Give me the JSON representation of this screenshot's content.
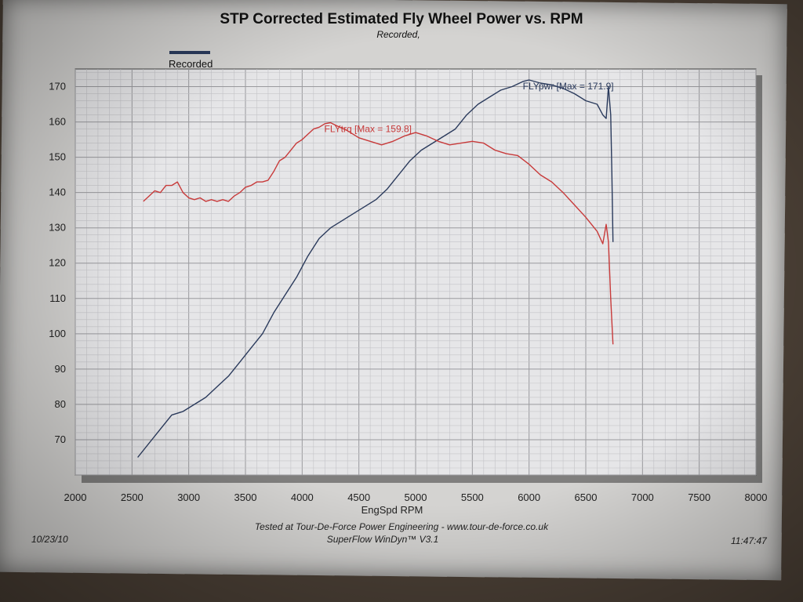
{
  "chart_data": {
    "type": "line",
    "title": "STP Corrected Estimated Fly Wheel Power vs. RPM",
    "subtitle": "Recorded,",
    "legend": {
      "entries": [
        "Recorded"
      ],
      "placement": "top-left"
    },
    "xlabel": "EngSpd RPM",
    "ylabel": "",
    "xlim": [
      2000,
      8000
    ],
    "ylim": [
      60,
      175
    ],
    "x_ticks": [
      "2000",
      "2500",
      "3000",
      "3500",
      "4000",
      "4500",
      "5000",
      "5500",
      "6000",
      "6500",
      "7000",
      "7500",
      "8000"
    ],
    "y_ticks": [
      "70",
      "80",
      "90",
      "100",
      "110",
      "120",
      "130",
      "140",
      "150",
      "160",
      "170"
    ],
    "grid": true,
    "series": [
      {
        "name": "FLYpwr",
        "color": "#2a3a5c",
        "annotation": "FLYpwr [Max = 171.9]",
        "points": [
          [
            2550,
            65
          ],
          [
            2650,
            69
          ],
          [
            2750,
            73
          ],
          [
            2850,
            77
          ],
          [
            2950,
            78
          ],
          [
            3050,
            80
          ],
          [
            3150,
            82
          ],
          [
            3250,
            85
          ],
          [
            3350,
            88
          ],
          [
            3450,
            92
          ],
          [
            3550,
            96
          ],
          [
            3650,
            100
          ],
          [
            3750,
            106
          ],
          [
            3850,
            111
          ],
          [
            3950,
            116
          ],
          [
            4050,
            122
          ],
          [
            4150,
            127
          ],
          [
            4250,
            130
          ],
          [
            4350,
            132
          ],
          [
            4450,
            134
          ],
          [
            4550,
            136
          ],
          [
            4650,
            138
          ],
          [
            4750,
            141
          ],
          [
            4850,
            145
          ],
          [
            4950,
            149
          ],
          [
            5050,
            152
          ],
          [
            5150,
            154
          ],
          [
            5250,
            156
          ],
          [
            5350,
            158
          ],
          [
            5450,
            162
          ],
          [
            5550,
            165
          ],
          [
            5650,
            167
          ],
          [
            5750,
            169
          ],
          [
            5850,
            170
          ],
          [
            5950,
            171.5
          ],
          [
            6000,
            171.9
          ],
          [
            6100,
            171
          ],
          [
            6200,
            170.5
          ],
          [
            6300,
            169.5
          ],
          [
            6400,
            168
          ],
          [
            6500,
            166
          ],
          [
            6600,
            165
          ],
          [
            6650,
            162
          ],
          [
            6680,
            161
          ],
          [
            6700,
            170
          ],
          [
            6720,
            162
          ],
          [
            6730,
            145
          ],
          [
            6740,
            126
          ]
        ]
      },
      {
        "name": "FLYtrq",
        "color": "#c83a3a",
        "annotation": "FLYtrq [Max = 159.8]",
        "points": [
          [
            2600,
            137.5
          ],
          [
            2650,
            139
          ],
          [
            2700,
            140.5
          ],
          [
            2750,
            140
          ],
          [
            2800,
            142
          ],
          [
            2850,
            142
          ],
          [
            2900,
            143
          ],
          [
            2950,
            140
          ],
          [
            3000,
            138.5
          ],
          [
            3050,
            138
          ],
          [
            3100,
            138.5
          ],
          [
            3150,
            137.5
          ],
          [
            3200,
            138
          ],
          [
            3250,
            137.5
          ],
          [
            3300,
            138
          ],
          [
            3350,
            137.5
          ],
          [
            3400,
            139
          ],
          [
            3450,
            140
          ],
          [
            3500,
            141.5
          ],
          [
            3550,
            142
          ],
          [
            3600,
            143
          ],
          [
            3650,
            143
          ],
          [
            3700,
            143.5
          ],
          [
            3750,
            146
          ],
          [
            3800,
            149
          ],
          [
            3850,
            150
          ],
          [
            3900,
            152
          ],
          [
            3950,
            154
          ],
          [
            4000,
            155
          ],
          [
            4050,
            156.5
          ],
          [
            4100,
            158
          ],
          [
            4150,
            158.5
          ],
          [
            4200,
            159.5
          ],
          [
            4250,
            159.8
          ],
          [
            4300,
            159
          ],
          [
            4400,
            157.5
          ],
          [
            4500,
            155.5
          ],
          [
            4600,
            154.5
          ],
          [
            4700,
            153.5
          ],
          [
            4800,
            154.5
          ],
          [
            4900,
            156
          ],
          [
            5000,
            157
          ],
          [
            5100,
            156
          ],
          [
            5200,
            154.5
          ],
          [
            5300,
            153.5
          ],
          [
            5400,
            154
          ],
          [
            5500,
            154.5
          ],
          [
            5600,
            154
          ],
          [
            5700,
            152
          ],
          [
            5800,
            151
          ],
          [
            5900,
            150.5
          ],
          [
            6000,
            148
          ],
          [
            6100,
            145
          ],
          [
            6200,
            143
          ],
          [
            6300,
            140
          ],
          [
            6400,
            136.5
          ],
          [
            6500,
            133
          ],
          [
            6600,
            129
          ],
          [
            6650,
            125.5
          ],
          [
            6680,
            131
          ],
          [
            6700,
            126
          ],
          [
            6720,
            110
          ],
          [
            6740,
            97
          ]
        ]
      }
    ]
  },
  "legend_label": "Recorded",
  "footer": {
    "line1": "Tested at Tour-De-Force Power Engineering - www.tour-de-force.co.uk",
    "line2": "SuperFlow WinDyn™ V3.1",
    "date": "10/23/10",
    "time": "11:47:47"
  }
}
